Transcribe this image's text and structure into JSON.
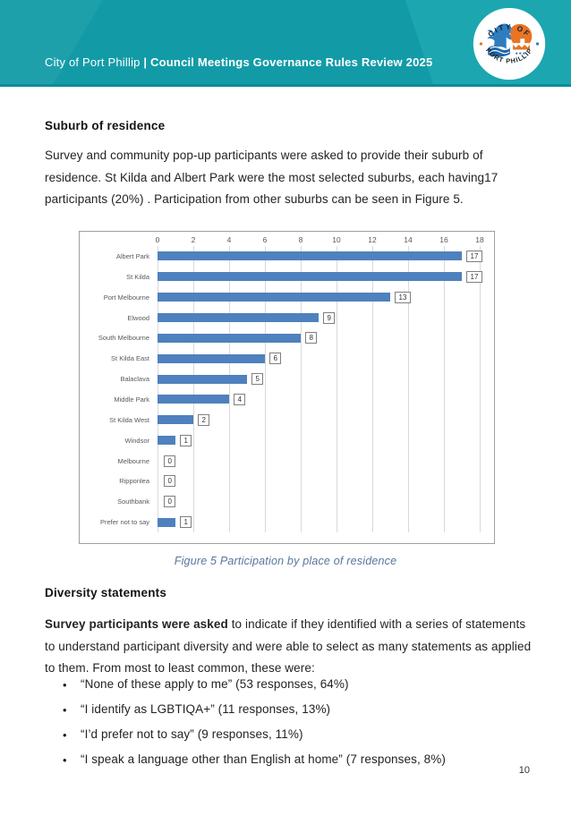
{
  "header": {
    "title_regular": "City of Port Phillip ",
    "title_bold": "| Council Meetings Governance Rules Review 2025",
    "logo": {
      "top_text": "CITY OF",
      "bottom_text": "PORT PHILLIP"
    },
    "colors": {
      "teal": "#129BA7",
      "teal_light": "#1CA6B0",
      "teal_dark": "#0A8C99"
    }
  },
  "sections": {
    "suburb": {
      "heading": "Suburb of residence",
      "body": "Survey and community pop-up participants were asked to provide their suburb of residence. St Kilda and Albert Park were the most selected suburbs, each having17 participants (20%) . Participation from other suburbs can be seen in Figure 5."
    },
    "figure_caption": "Figure 5 Participation by place of residence",
    "diversity": {
      "heading": "Diversity statements",
      "body_medium": "Survey participants were asked",
      "body_rest": " to indicate if they identified with a series of statements to understand participant diversity and were able to select as many statements as applied to them. From most to least common, these were:",
      "bullets": [
        "“None of these apply to me” (53 responses, 64%)",
        "“I identify as LGBTIQA+” (11 responses, 13%)",
        "“I’d prefer not to say” (9 responses, 11%)",
        "“I speak a language other than English at home” (7 responses, 8%)"
      ]
    }
  },
  "chart_data": {
    "type": "bar",
    "orientation": "horizontal",
    "categories": [
      "Albert Park",
      "St Kilda",
      "Port Melbourne",
      "Elwood",
      "South Melbourne",
      "St Kilda East",
      "Balaclava",
      "Middle Park",
      "St Kilda West",
      "Windsor",
      "Melbourne",
      "Ripponlea",
      "Southbank",
      "Prefer not to say"
    ],
    "values": [
      17,
      17,
      13,
      9,
      8,
      6,
      5,
      4,
      2,
      1,
      0,
      0,
      0,
      1
    ],
    "title": "",
    "xlabel": "",
    "ylabel": "",
    "xlim": [
      0,
      18
    ],
    "x_ticks": [
      0,
      2,
      4,
      6,
      8,
      10,
      12,
      14,
      16,
      18
    ],
    "axis_position": "top",
    "grid": true,
    "data_labels": true,
    "bar_color": "#4E81BD",
    "legend": "none"
  },
  "page_number": "10"
}
